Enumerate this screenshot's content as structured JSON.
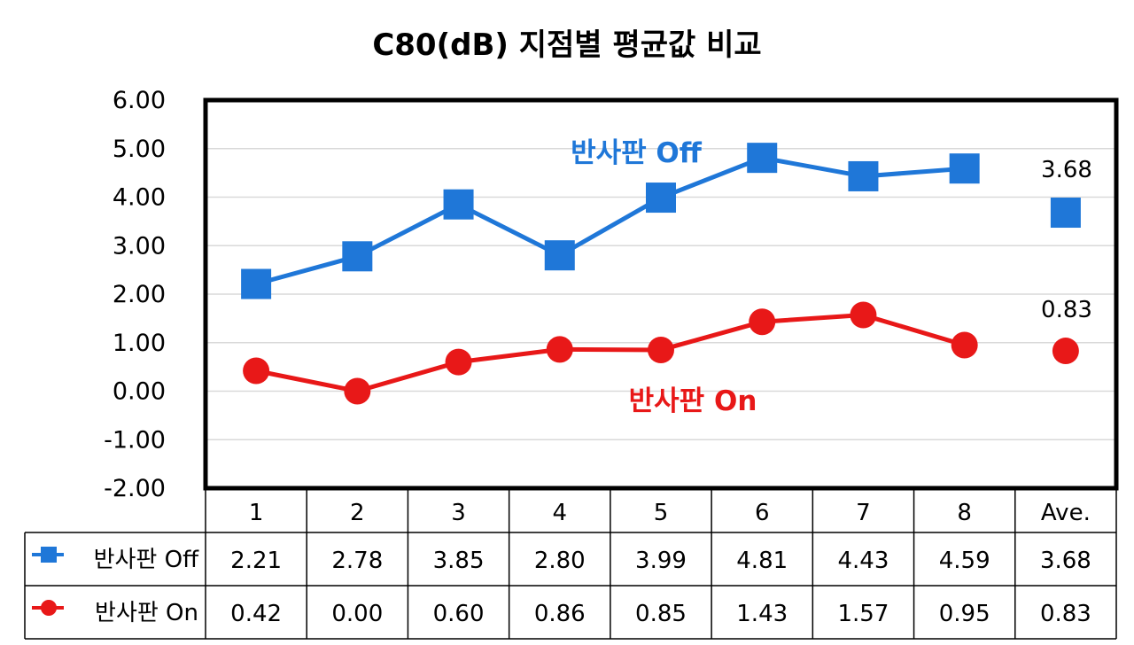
{
  "chart_data": {
    "type": "line",
    "title": "C80(dB) 지점별 평균값 비교",
    "categories": [
      "1",
      "2",
      "3",
      "4",
      "5",
      "6",
      "7",
      "8",
      "Ave."
    ],
    "ylim": [
      -2,
      6
    ],
    "yticks": [
      "6.00",
      "5.00",
      "4.00",
      "3.00",
      "2.00",
      "1.00",
      "0.00",
      "-1.00",
      "-2.00"
    ],
    "grid": true,
    "legend": "data-table",
    "series": [
      {
        "name": "반사판 Off",
        "color": "#1F77D8",
        "marker": "square",
        "values": [
          2.21,
          2.78,
          3.85,
          2.8,
          3.99,
          4.81,
          4.43,
          4.59,
          3.68
        ],
        "labels": [
          "2.21",
          "2.78",
          "3.85",
          "2.80",
          "3.99",
          "4.81",
          "4.43",
          "4.59",
          "3.68"
        ]
      },
      {
        "name": "반사판 On",
        "color": "#E81818",
        "marker": "circle",
        "values": [
          0.42,
          0.0,
          0.6,
          0.86,
          0.85,
          1.43,
          1.57,
          0.95,
          0.83
        ],
        "labels": [
          "0.42",
          "0.00",
          "0.60",
          "0.86",
          "0.85",
          "1.43",
          "1.57",
          "0.95",
          "0.83"
        ]
      }
    ],
    "annotations": {
      "off_label": "반사판 Off",
      "on_label": "반사판 On",
      "off_ave": "3.68",
      "on_ave": "0.83"
    }
  }
}
